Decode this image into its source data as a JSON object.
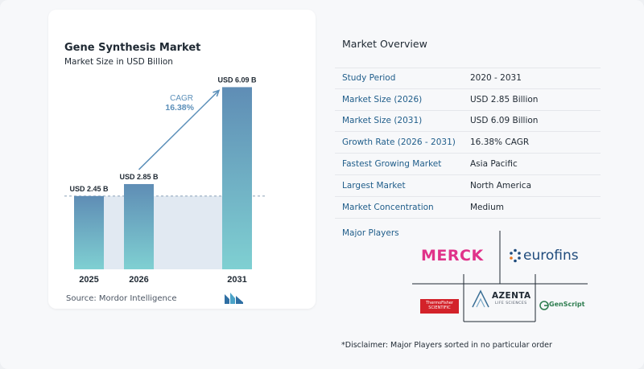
{
  "chart_data": {
    "type": "bar",
    "title": "Gene Synthesis Market",
    "subtitle": "Market Size in USD Billion",
    "categories": [
      "2025",
      "2026",
      "2031"
    ],
    "values": [
      2.45,
      2.85,
      6.09
    ],
    "data_labels": [
      "USD 2.45 B",
      "USD 2.85 B",
      "USD 6.09 B"
    ],
    "xlabel": "",
    "ylabel": "",
    "ylim": [
      0,
      6.8
    ],
    "grid": false,
    "annotation": {
      "label": "CAGR",
      "value": "16.38%"
    },
    "colors": {
      "bar_top": "#5f8db5",
      "bar_bottom": "#7fd0d2",
      "arrow": "#5b8fb9",
      "shade": "#e1e9f2",
      "baseline_dash": "#8aa1b6"
    }
  },
  "source": {
    "label": "Source:",
    "name": "Mordor Intelligence"
  },
  "overview": {
    "title": "Market Overview",
    "rows": [
      {
        "label": "Study Period",
        "value": "2020 - 2031"
      },
      {
        "label": "Market Size (2026)",
        "value": "USD 2.85 Billion"
      },
      {
        "label": "Market Size (2031)",
        "value": "USD 6.09 Billion"
      },
      {
        "label": "Growth Rate (2026 - 2031)",
        "value": "16.38% CAGR"
      },
      {
        "label": "Fastest Growing Market",
        "value": "Asia Pacific"
      },
      {
        "label": "Largest Market",
        "value": "North America"
      },
      {
        "label": "Market Concentration",
        "value": "Medium"
      }
    ]
  },
  "players": {
    "title": "Major Players",
    "logos": {
      "merck": "MERCK",
      "eurofins": "eurofins",
      "thermo": "ThermoFisher SCIENTIFIC",
      "azenta": "AZENTA",
      "azenta_sub": "LIFE SCIENCES",
      "genscript": "GenScript"
    },
    "disclaimer": "*Disclaimer: Major Players sorted in no particular order"
  }
}
